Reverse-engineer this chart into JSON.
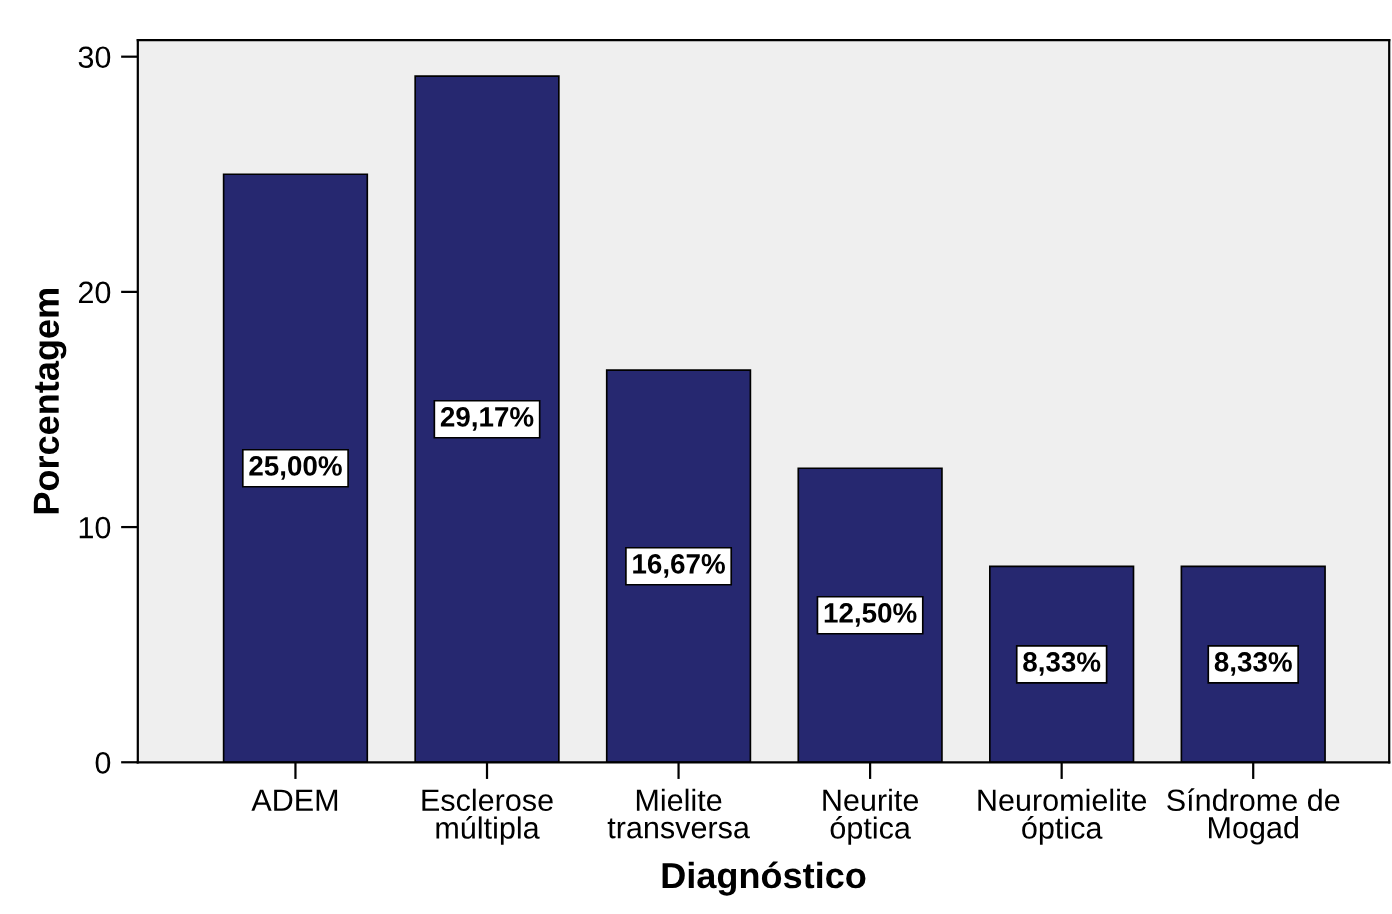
{
  "chart_data": {
    "type": "bar",
    "xlabel": "Diagnóstico",
    "ylabel": "Porcentagem",
    "categories": [
      "ADEM",
      "Esclerose\nmúltipla",
      "Mielite\ntransversa",
      "Neurite\nóptica",
      "Neuromielite\nóptica",
      "Síndrome de\nMogad"
    ],
    "values": [
      25.0,
      29.17,
      16.67,
      12.5,
      8.33,
      8.33
    ],
    "value_labels": [
      "25,00%",
      "29,17%",
      "16,67%",
      "12,50%",
      "8,33%",
      "8,33%"
    ],
    "color": "#262870",
    "ylim": [
      0,
      30.7
    ],
    "yticks": [
      0,
      10,
      20,
      30
    ],
    "grid": false,
    "legend": false
  }
}
